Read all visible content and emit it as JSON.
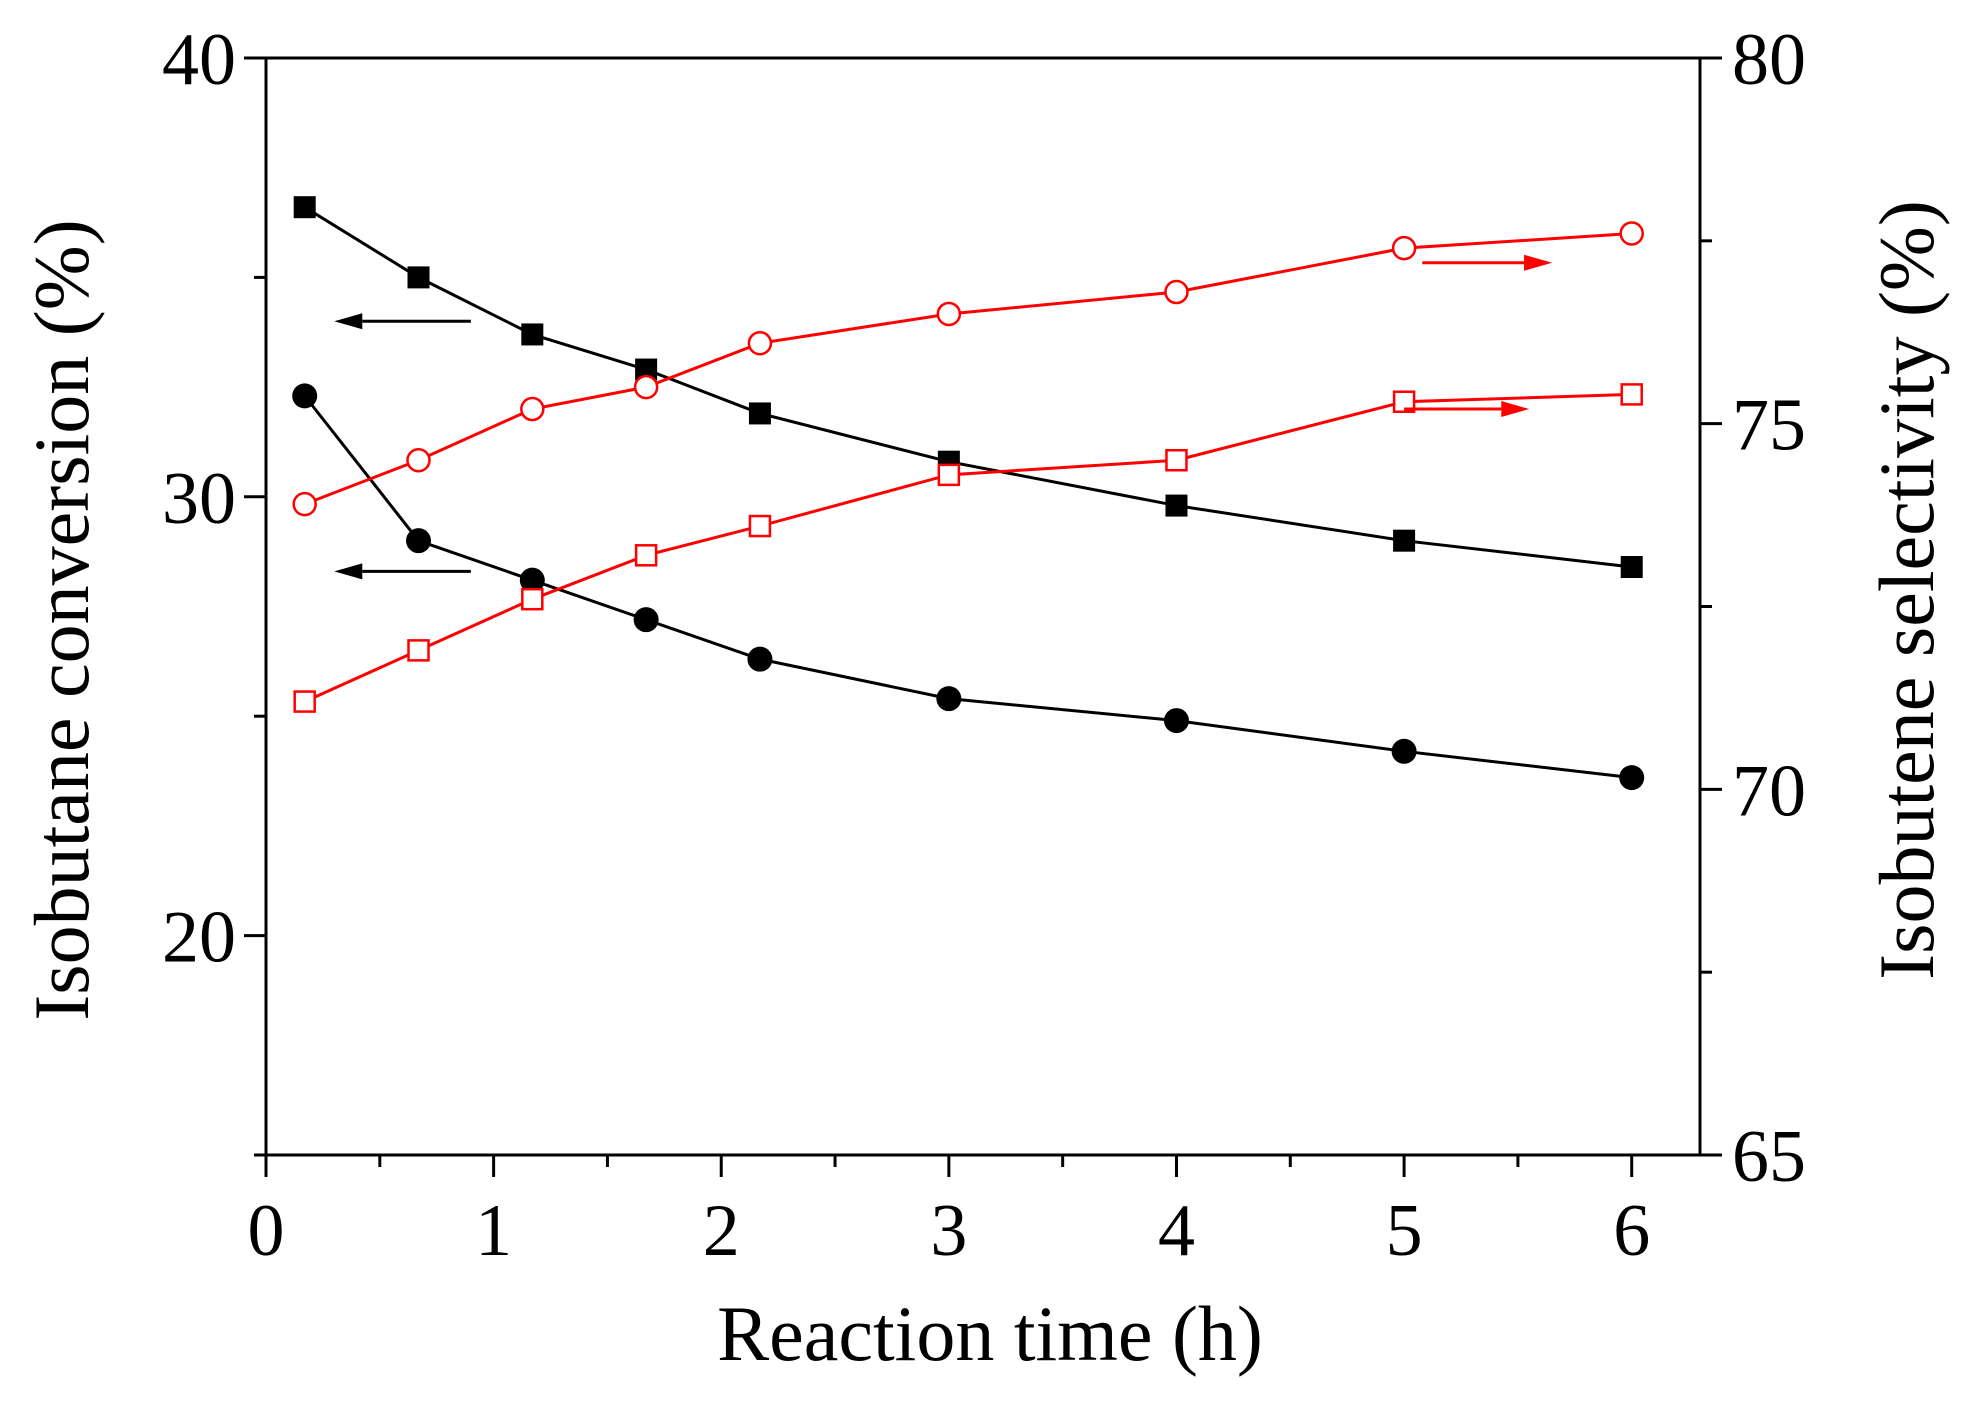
{
  "chart_data": {
    "type": "line",
    "title": "",
    "xlabel": "Reaction time (h)",
    "ylabel_left": "Isobutane conversion (%)",
    "ylabel_right": "Isobutene selectivity (%)",
    "xlim": [
      0,
      6.3
    ],
    "ylim_left": [
      15,
      40
    ],
    "ylim_right": [
      65,
      80
    ],
    "x_ticks": [
      0,
      1,
      2,
      3,
      4,
      5,
      6
    ],
    "y_left_ticks": [
      20,
      30,
      40
    ],
    "y_right_ticks": [
      65,
      70,
      75,
      80
    ],
    "grid": false,
    "series": [
      {
        "name": "conversion-squares",
        "axis": "left",
        "marker": "square-filled",
        "color": "#000000",
        "x": [
          0.17,
          0.67,
          1.17,
          1.67,
          2.17,
          3,
          4,
          5,
          6
        ],
        "values": [
          36.6,
          35.0,
          33.7,
          32.9,
          31.9,
          30.8,
          29.8,
          29.0,
          28.4
        ]
      },
      {
        "name": "conversion-circles",
        "axis": "left",
        "marker": "circle-filled",
        "color": "#000000",
        "x": [
          0.17,
          0.67,
          1.17,
          1.67,
          2.17,
          3,
          4,
          5,
          6
        ],
        "values": [
          32.3,
          29.0,
          28.1,
          27.2,
          26.3,
          25.4,
          24.9,
          24.2,
          23.6
        ]
      },
      {
        "name": "selectivity-circles",
        "axis": "right",
        "marker": "circle-open",
        "color": "#ff0000",
        "x": [
          0.17,
          0.67,
          1.17,
          1.67,
          2.17,
          3,
          4,
          5,
          6
        ],
        "values": [
          73.9,
          74.5,
          75.2,
          75.5,
          76.1,
          76.5,
          76.8,
          77.4,
          77.6
        ]
      },
      {
        "name": "selectivity-squares",
        "axis": "right",
        "marker": "square-open",
        "color": "#ff0000",
        "x": [
          0.17,
          0.67,
          1.17,
          1.67,
          2.17,
          3,
          4,
          5,
          6
        ],
        "values": [
          71.2,
          71.9,
          72.6,
          73.2,
          73.6,
          74.3,
          74.5,
          75.3,
          75.4
        ]
      }
    ],
    "annotations": [
      {
        "name": "arrow-squares-left",
        "color": "#000000",
        "direction": "left",
        "axis": "left",
        "from_x": 0.9,
        "to_x": 0.3,
        "y": 34.0
      },
      {
        "name": "arrow-circles-left",
        "color": "#000000",
        "direction": "left",
        "axis": "left",
        "from_x": 0.9,
        "to_x": 0.3,
        "y": 28.3
      },
      {
        "name": "arrow-circles-right",
        "color": "#ff0000",
        "direction": "right",
        "axis": "right",
        "from_x": 5.08,
        "to_x": 5.65,
        "y": 77.2
      },
      {
        "name": "arrow-squares-right",
        "color": "#ff0000",
        "direction": "right",
        "axis": "right",
        "from_x": 5.0,
        "to_x": 5.55,
        "y": 75.2
      }
    ]
  }
}
